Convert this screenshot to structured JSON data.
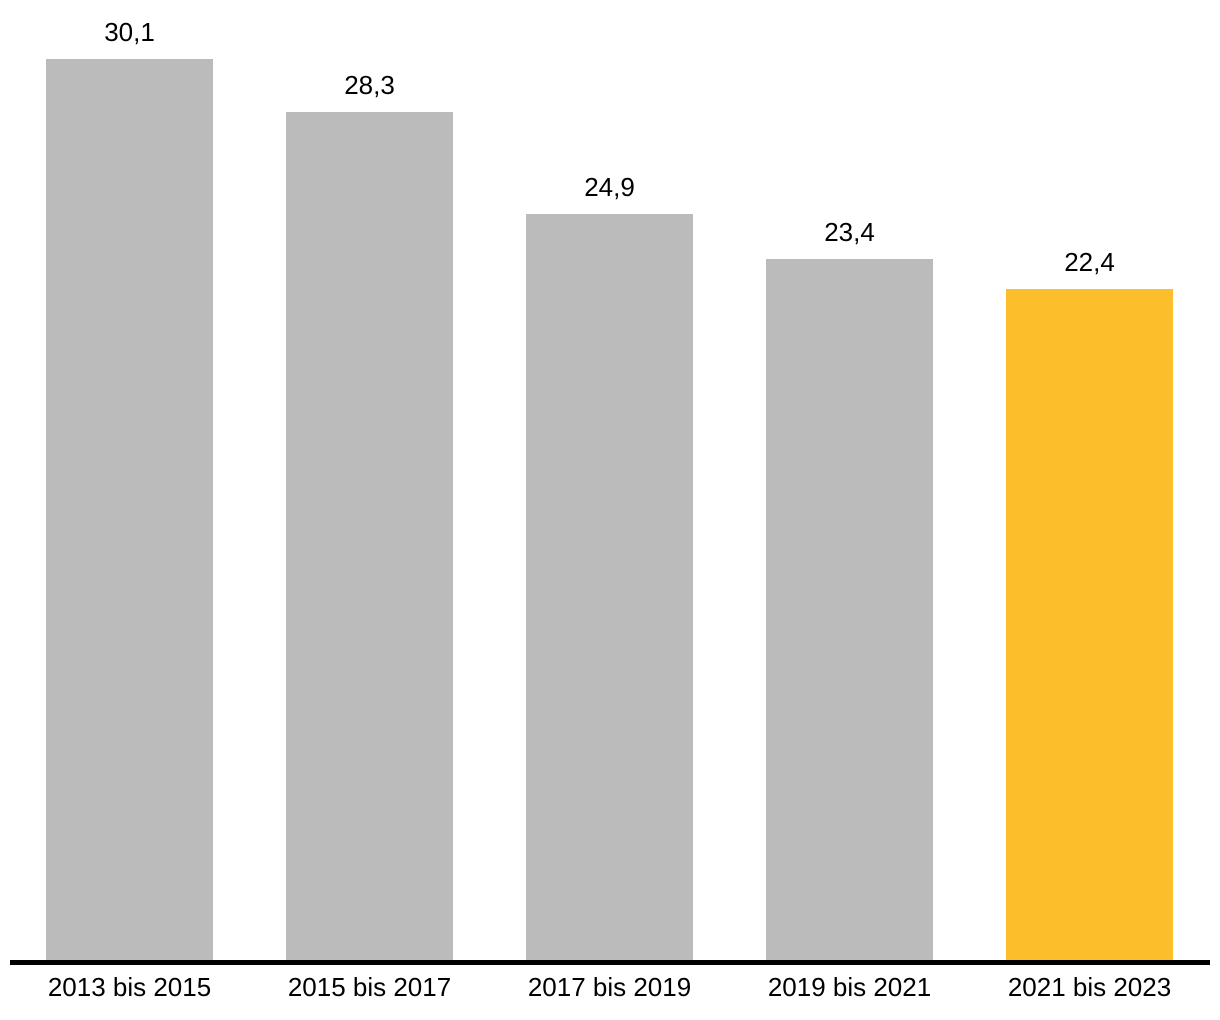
{
  "chart_data": {
    "type": "bar",
    "title": "",
    "xlabel": "",
    "ylabel": "",
    "categories": [
      "2013 bis 2015",
      "2015 bis 2017",
      "2017 bis 2019",
      "2019 bis 2021",
      "2021 bis 2023"
    ],
    "values": [
      30.1,
      28.3,
      24.9,
      23.4,
      22.4
    ],
    "value_labels": [
      "30,1",
      "28,3",
      "24,9",
      "23,4",
      "22,4"
    ],
    "highlight_index": 4,
    "ylim": [
      0,
      32
    ],
    "grid": false,
    "legend": null,
    "decimal_separator": ",",
    "colors": {
      "bar_default": "#BBBBBB",
      "bar_highlight": "#FDBE2B",
      "axis": "#000000",
      "label_text": "#000000"
    }
  }
}
